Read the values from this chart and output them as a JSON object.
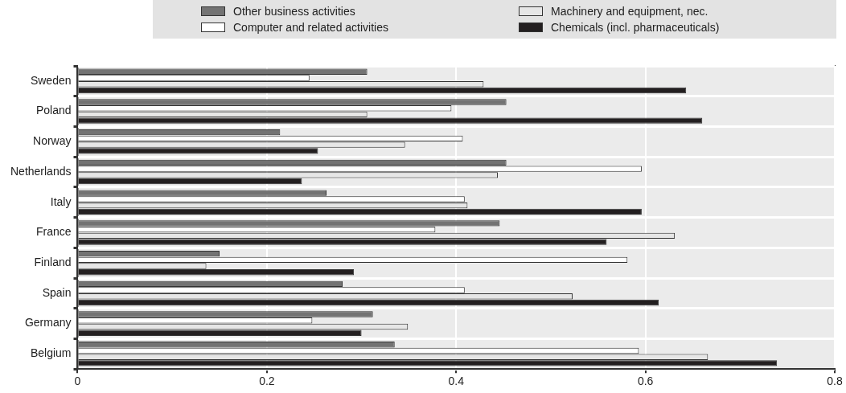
{
  "chart_data": {
    "type": "bar",
    "orientation": "horizontal",
    "categories": [
      "Sweden",
      "Poland",
      "Norway",
      "Netherlands",
      "Italy",
      "France",
      "Finland",
      "Spain",
      "Germany",
      "Belgium"
    ],
    "series": [
      {
        "name": "Other business activities",
        "color": "#737373",
        "values": [
          0.306,
          0.453,
          0.214,
          0.453,
          0.263,
          0.446,
          0.15,
          0.28,
          0.312,
          0.335
        ]
      },
      {
        "name": "Computer and related activities",
        "color": "#ffffff",
        "values": [
          0.245,
          0.395,
          0.407,
          0.596,
          0.409,
          0.378,
          0.581,
          0.409,
          0.248,
          0.593
        ]
      },
      {
        "name": "Machinery and equipment, nec.",
        "color": "#e6e6e6",
        "values": [
          0.429,
          0.306,
          0.346,
          0.444,
          0.412,
          0.631,
          0.136,
          0.523,
          0.349,
          0.666
        ]
      },
      {
        "name": "Chemicals (incl. pharmaceuticals)",
        "color": "#231f20",
        "values": [
          0.643,
          0.66,
          0.254,
          0.237,
          0.596,
          0.559,
          0.292,
          0.614,
          0.3,
          0.739
        ]
      }
    ],
    "xlim": [
      0,
      0.8
    ],
    "xticks": [
      0,
      0.2,
      0.4,
      0.6,
      0.8
    ],
    "grid": true,
    "legend": "top"
  }
}
